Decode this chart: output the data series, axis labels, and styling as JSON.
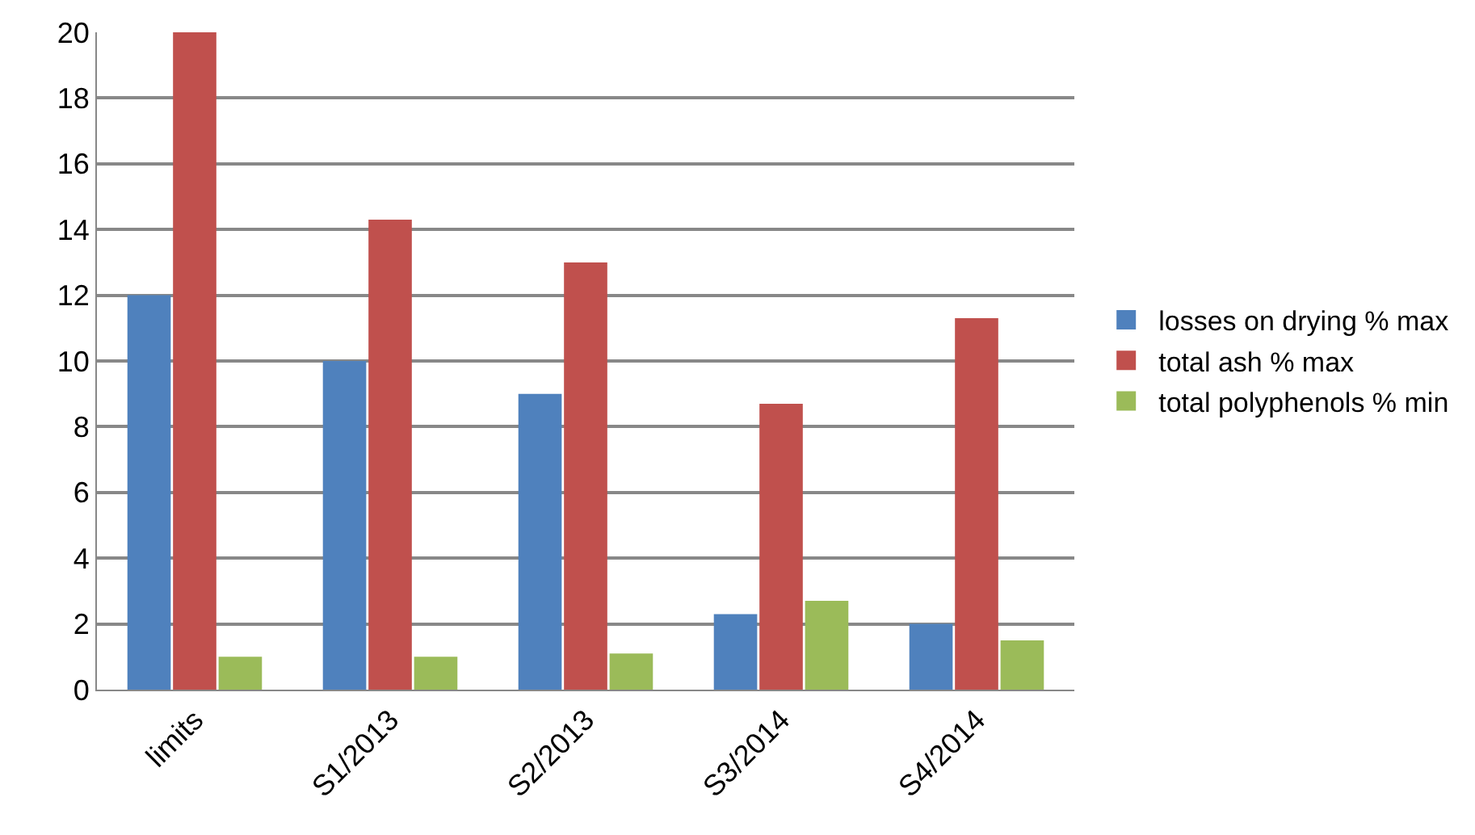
{
  "chart_data": {
    "type": "bar",
    "categories": [
      "limits",
      "S1/2013",
      "S2/2013",
      "S3/2014",
      "S4/2014"
    ],
    "series": [
      {
        "name": "losses on drying % max",
        "color": "#4f81bd",
        "values": [
          12,
          10,
          9,
          2.3,
          2
        ]
      },
      {
        "name": "total ash % max",
        "color": "#c0504d",
        "values": [
          20,
          14.3,
          13,
          8.7,
          11.3
        ]
      },
      {
        "name": "total polyphenols % min",
        "color": "#9bbb59",
        "values": [
          1,
          1,
          1.1,
          2.7,
          1.5
        ]
      }
    ],
    "ylim": [
      0,
      20
    ],
    "yticks": [
      0,
      2,
      4,
      6,
      8,
      10,
      12,
      14,
      16,
      18,
      20
    ],
    "grid": "y",
    "legend": "right"
  }
}
